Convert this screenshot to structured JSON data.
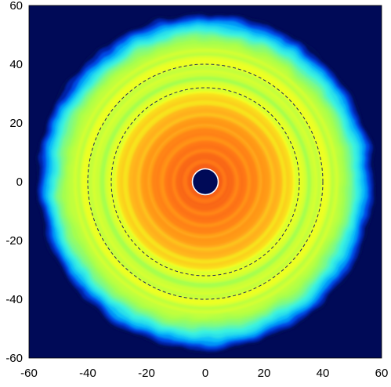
{
  "chart_data": {
    "type": "heatmap",
    "title": "",
    "xlabel": "",
    "ylabel": "",
    "xlim": [
      -60,
      60
    ],
    "ylim": [
      -60,
      60
    ],
    "x_ticks": [
      -60,
      -40,
      -20,
      0,
      20,
      40,
      60
    ],
    "y_ticks": [
      60,
      40,
      20,
      0,
      -20,
      -40,
      -60
    ],
    "x_tick_labels": [
      "-60",
      "-40",
      "-20",
      "0",
      "20",
      "40",
      "60"
    ],
    "y_tick_labels": [
      "60",
      "40",
      "20",
      "0",
      "-20",
      "-40",
      "-60"
    ],
    "grid": false,
    "legend": "none",
    "colormap": [
      "#000a57",
      "#0033e0",
      "#00b2ff",
      "#39f2e0",
      "#a8ff4a",
      "#f4ff20",
      "#ffb21c",
      "#ff7a12",
      "#ee4513"
    ],
    "background_color": "#000a57",
    "center_hole": {
      "x": 0,
      "y": 0,
      "radius": 2.2
    },
    "disk_outer_radius_approx": 55,
    "dashed_circles": [
      {
        "center": [
          0,
          0
        ],
        "radius": 32
      },
      {
        "center": [
          0,
          0
        ],
        "radius": 40
      }
    ],
    "radial_profile": [
      {
        "r": 0,
        "level": 0.95
      },
      {
        "r": 6,
        "level": 0.92
      },
      {
        "r": 12,
        "level": 0.88
      },
      {
        "r": 18,
        "level": 0.83
      },
      {
        "r": 24,
        "level": 0.75
      },
      {
        "r": 29,
        "level": 0.68
      },
      {
        "r": 33,
        "level": 0.58
      },
      {
        "r": 36,
        "level": 0.52
      },
      {
        "r": 41,
        "level": 0.6
      },
      {
        "r": 46,
        "level": 0.54
      },
      {
        "r": 50,
        "level": 0.45
      },
      {
        "r": 53,
        "level": 0.34
      },
      {
        "r": 55,
        "level": 0.22
      },
      {
        "r": 58,
        "level": 0.0
      }
    ]
  }
}
